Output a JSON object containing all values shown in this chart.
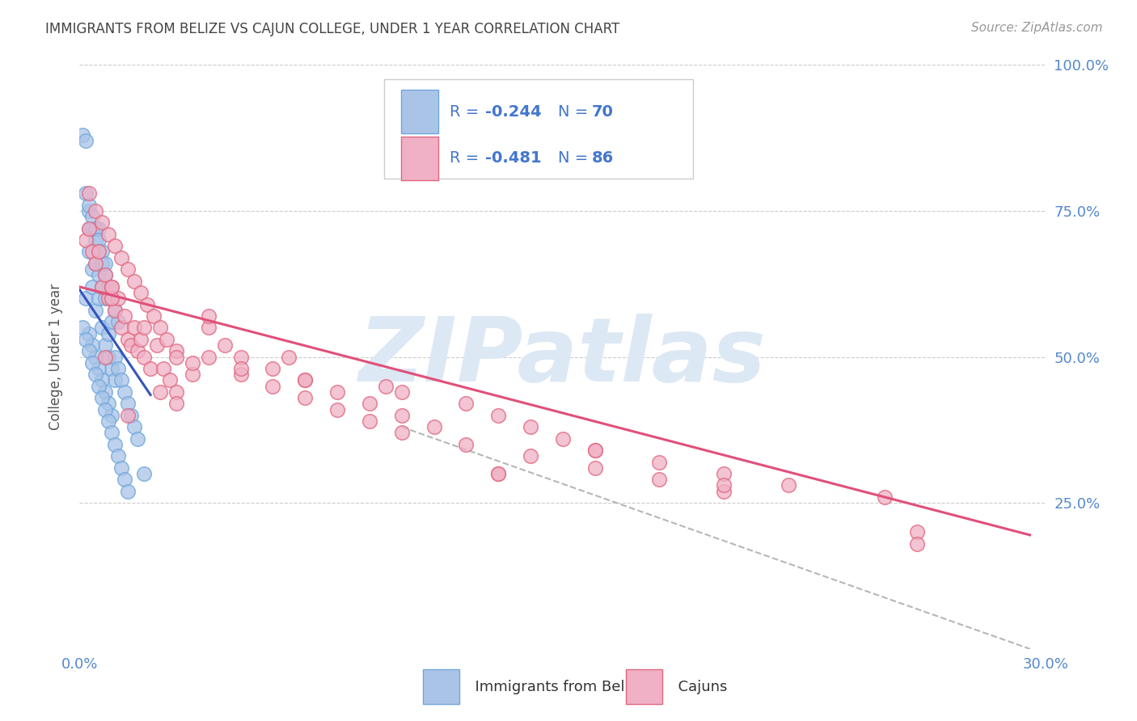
{
  "title": "IMMIGRANTS FROM BELIZE VS CAJUN COLLEGE, UNDER 1 YEAR CORRELATION CHART",
  "source": "Source: ZipAtlas.com",
  "ylabel": "College, Under 1 year",
  "watermark": "ZIPatlas",
  "xmin": 0.0,
  "xmax": 0.3,
  "ymin": 0.0,
  "ymax": 1.0,
  "bg_color": "#ffffff",
  "grid_color": "#cccccc",
  "title_color": "#444444",
  "axis_color": "#5588cc",
  "watermark_color": "#dde8f5",
  "blue_face": "#aac4e8",
  "blue_edge": "#6fa8dc",
  "pink_face": "#f0b0c5",
  "pink_edge": "#e06880",
  "blue_line": "#3355bb",
  "pink_line": "#e0507a",
  "dash_color": "#aaaaaa",
  "legend_text_color": "#4477cc",
  "blue_scatter_x": [
    0.001,
    0.002,
    0.002,
    0.003,
    0.003,
    0.004,
    0.004,
    0.005,
    0.005,
    0.006,
    0.006,
    0.006,
    0.007,
    0.007,
    0.008,
    0.008,
    0.009,
    0.009,
    0.01,
    0.01,
    0.011,
    0.011,
    0.012,
    0.013,
    0.014,
    0.015,
    0.016,
    0.017,
    0.018,
    0.02,
    0.003,
    0.004,
    0.005,
    0.006,
    0.007,
    0.008,
    0.009,
    0.01,
    0.011,
    0.012,
    0.003,
    0.004,
    0.005,
    0.006,
    0.007,
    0.008,
    0.009,
    0.01,
    0.002,
    0.003,
    0.004,
    0.005,
    0.006,
    0.007,
    0.008,
    0.001,
    0.002,
    0.003,
    0.004,
    0.005,
    0.006,
    0.007,
    0.008,
    0.009,
    0.01,
    0.011,
    0.012,
    0.013,
    0.014,
    0.015
  ],
  "blue_scatter_y": [
    0.88,
    0.87,
    0.6,
    0.72,
    0.68,
    0.65,
    0.62,
    0.66,
    0.58,
    0.72,
    0.64,
    0.6,
    0.62,
    0.55,
    0.6,
    0.52,
    0.54,
    0.5,
    0.56,
    0.48,
    0.5,
    0.46,
    0.48,
    0.46,
    0.44,
    0.42,
    0.4,
    0.38,
    0.36,
    0.3,
    0.75,
    0.72,
    0.7,
    0.68,
    0.66,
    0.64,
    0.62,
    0.6,
    0.58,
    0.56,
    0.54,
    0.52,
    0.5,
    0.48,
    0.46,
    0.44,
    0.42,
    0.4,
    0.78,
    0.76,
    0.74,
    0.72,
    0.7,
    0.68,
    0.66,
    0.55,
    0.53,
    0.51,
    0.49,
    0.47,
    0.45,
    0.43,
    0.41,
    0.39,
    0.37,
    0.35,
    0.33,
    0.31,
    0.29,
    0.27
  ],
  "pink_scatter_x": [
    0.002,
    0.003,
    0.004,
    0.005,
    0.006,
    0.007,
    0.008,
    0.009,
    0.01,
    0.011,
    0.012,
    0.013,
    0.014,
    0.015,
    0.016,
    0.017,
    0.018,
    0.019,
    0.02,
    0.022,
    0.024,
    0.026,
    0.028,
    0.03,
    0.035,
    0.04,
    0.045,
    0.05,
    0.06,
    0.07,
    0.08,
    0.09,
    0.1,
    0.11,
    0.12,
    0.13,
    0.14,
    0.15,
    0.16,
    0.18,
    0.2,
    0.22,
    0.25,
    0.26,
    0.003,
    0.005,
    0.007,
    0.009,
    0.011,
    0.013,
    0.015,
    0.017,
    0.019,
    0.021,
    0.023,
    0.025,
    0.027,
    0.03,
    0.035,
    0.04,
    0.05,
    0.06,
    0.07,
    0.08,
    0.09,
    0.1,
    0.12,
    0.14,
    0.16,
    0.18,
    0.01,
    0.02,
    0.03,
    0.05,
    0.07,
    0.1,
    0.13,
    0.16,
    0.2,
    0.008,
    0.015,
    0.025,
    0.04,
    0.065,
    0.095,
    0.13,
    0.2,
    0.26,
    0.01,
    0.03
  ],
  "pink_scatter_y": [
    0.7,
    0.72,
    0.68,
    0.66,
    0.68,
    0.62,
    0.64,
    0.6,
    0.62,
    0.58,
    0.6,
    0.55,
    0.57,
    0.53,
    0.52,
    0.55,
    0.51,
    0.53,
    0.5,
    0.48,
    0.52,
    0.48,
    0.46,
    0.44,
    0.47,
    0.5,
    0.52,
    0.5,
    0.48,
    0.46,
    0.44,
    0.42,
    0.4,
    0.38,
    0.42,
    0.4,
    0.38,
    0.36,
    0.34,
    0.32,
    0.3,
    0.28,
    0.26,
    0.2,
    0.78,
    0.75,
    0.73,
    0.71,
    0.69,
    0.67,
    0.65,
    0.63,
    0.61,
    0.59,
    0.57,
    0.55,
    0.53,
    0.51,
    0.49,
    0.55,
    0.47,
    0.45,
    0.43,
    0.41,
    0.39,
    0.37,
    0.35,
    0.33,
    0.31,
    0.29,
    0.6,
    0.55,
    0.5,
    0.48,
    0.46,
    0.44,
    0.3,
    0.34,
    0.27,
    0.5,
    0.4,
    0.44,
    0.57,
    0.5,
    0.45,
    0.3,
    0.28,
    0.18,
    0.62,
    0.42
  ],
  "blue_line_x": [
    0.0,
    0.022
  ],
  "blue_line_y": [
    0.615,
    0.435
  ],
  "pink_line_x": [
    0.0,
    0.295
  ],
  "pink_line_y": [
    0.62,
    0.195
  ],
  "dash_line_x": [
    0.1,
    0.295
  ],
  "dash_line_y": [
    0.38,
    0.0
  ]
}
